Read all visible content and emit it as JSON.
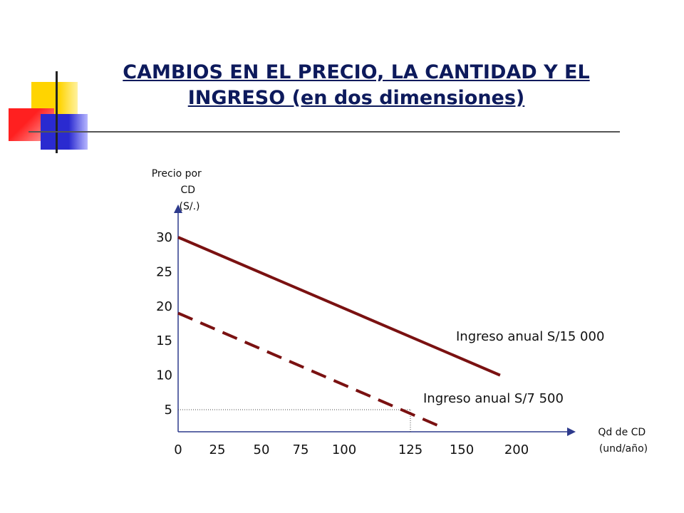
{
  "title": "CAMBIOS EN EL PRECIO, LA CANTIDAD Y EL INGRESO (en dos dimensiones)",
  "colors": {
    "title": "#0d1a5c",
    "axis": "#2d3a8c",
    "line": "#7a1111",
    "deco_yellow": "#ffd400",
    "deco_red": "#ff3030",
    "deco_blue": "#2a2ad0"
  },
  "chart_data": {
    "type": "line",
    "ylabel_lines": [
      "Precio por",
      "CD",
      "(S/.)"
    ],
    "xlabel_lines": [
      "Qd de CD",
      "(und/año)"
    ],
    "y_ticks": [
      "5",
      "10",
      "15",
      "20",
      "25",
      "30"
    ],
    "x_ticks": [
      "0",
      "25",
      "50",
      "75",
      "100",
      "125",
      "150",
      "200"
    ],
    "series": [
      {
        "name": "Ingreso anual S/15 000",
        "style": "solid",
        "points": [
          [
            0,
            30
          ],
          [
            185,
            10
          ]
        ]
      },
      {
        "name": "Ingreso anual S/7 500",
        "style": "dashed",
        "points": [
          [
            0,
            19
          ],
          [
            140,
            2.5
          ]
        ]
      }
    ],
    "reference_point": {
      "x": 125,
      "y": 5
    },
    "grid": false,
    "legend": "inline-labels"
  }
}
